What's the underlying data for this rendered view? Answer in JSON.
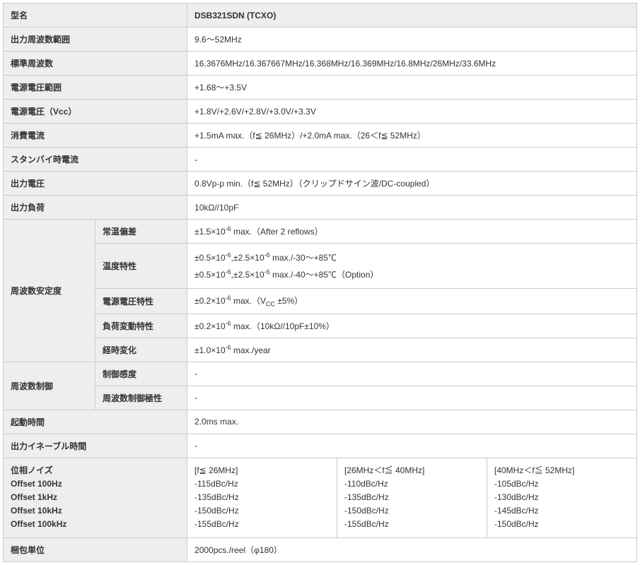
{
  "labels": {
    "model": "型名",
    "freq_range": "出力周波数範囲",
    "std_freq": "標準周波数",
    "supply_range": "電源電圧範囲",
    "supply_vcc": "電源電圧（Vcc）",
    "current": "消費電流",
    "standby_current": "スタンバイ時電流",
    "output_voltage": "出力電圧",
    "output_load": "出力負荷",
    "freq_stability": "周波数安定度",
    "room_dev": "常温偏差",
    "temp_char": "温度特性",
    "supply_char": "電源電圧特性",
    "load_char": "負荷変動特性",
    "aging": "経時変化",
    "freq_control": "周波数制御",
    "ctrl_sens": "制御感度",
    "ctrl_polarity": "周波数制御極性",
    "startup": "起動時間",
    "enable_time": "出力イネーブル時間",
    "phase_noise": "位相ノイズ",
    "offset_100hz": "Offset 100Hz",
    "offset_1khz": "Offset 1kHz",
    "offset_10khz": "Offset 10kHz",
    "offset_100khz": "Offset 100kHz",
    "packing": "梱包単位"
  },
  "values": {
    "model": "DSB321SDN (TCXO)",
    "freq_range": "9.6〜52MHz",
    "std_freq": "16.3676MHz/16.367667MHz/16.368MHz/16.369MHz/16.8MHz/26MHz/33.6MHz",
    "supply_range": "+1.68〜+3.5V",
    "supply_vcc": "+1.8V/+2.6V/+2.8V/+3.0V/+3.3V",
    "current": "+1.5mA max.（f≦ 26MHz）/+2.0mA max.（26＜f≦ 52MHz）",
    "standby_current": "-",
    "output_voltage": "0.8Vp-p min.（f≦ 52MHz）（クリップドサイン波/DC-coupled）",
    "output_load": "10kΩ//10pF",
    "room_dev_pre": "±1.5×10",
    "room_dev_exp": "-6",
    "room_dev_post": " max.（After 2 reflows）",
    "temp_char_1_pre": "±0.5×10",
    "temp_char_1_mid": ",±2.5×10",
    "temp_char_1_post": " max./-30〜+85℃",
    "temp_char_2_pre": "±0.5×10",
    "temp_char_2_mid": ",±2.5×10",
    "temp_char_2_post": " max./-40〜+85℃（Option）",
    "temp_exp": "-6",
    "supply_char_pre": "±0.2×10",
    "supply_char_exp": "-6",
    "supply_char_post_a": " max.（V",
    "supply_char_sub": "CC",
    "supply_char_post_b": " ±5%）",
    "load_char_pre": "±0.2×10",
    "load_char_exp": "-6",
    "load_char_post": " max.（10kΩ//10pF±10%）",
    "aging_pre": "±1.0×10",
    "aging_exp": "-6",
    "aging_post": " max./year",
    "ctrl_sens": "-",
    "ctrl_polarity": "-",
    "startup": "2.0ms max.",
    "enable_time": "-",
    "phase_noise": {
      "col1_header": "[f≦ 26MHz]",
      "col2_header": "[26MHz＜f≦ 40MHz]",
      "col3_header": "[40MHz＜f≦ 52MHz]",
      "col1": {
        "r1": "-115dBc/Hz",
        "r2": "-135dBc/Hz",
        "r3": "-150dBc/Hz",
        "r4": "-155dBc/Hz"
      },
      "col2": {
        "r1": "-110dBc/Hz",
        "r2": "-135dBc/Hz",
        "r3": "-150dBc/Hz",
        "r4": "-155dBc/Hz"
      },
      "col3": {
        "r1": "-105dBc/Hz",
        "r2": "-130dBc/Hz",
        "r3": "-145dBc/Hz",
        "r4": "-150dBc/Hz"
      }
    },
    "packing": "2000pcs./reel（φ180）"
  }
}
